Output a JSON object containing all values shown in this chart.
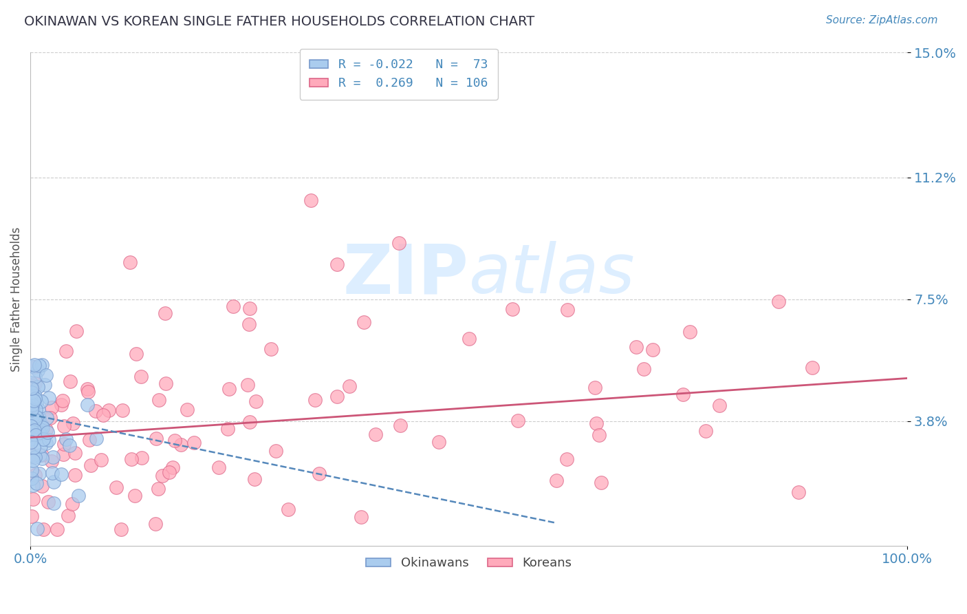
{
  "title": "OKINAWAN VS KOREAN SINGLE FATHER HOUSEHOLDS CORRELATION CHART",
  "source_text": "Source: ZipAtlas.com",
  "ylabel": "Single Father Households",
  "xmin": 0.0,
  "xmax": 1.0,
  "ymin": 0.0,
  "ymax": 0.15,
  "yticks": [
    0.038,
    0.075,
    0.112,
    0.15
  ],
  "ytick_labels": [
    "3.8%",
    "7.5%",
    "11.2%",
    "15.0%"
  ],
  "xticks": [
    0.0,
    1.0
  ],
  "xtick_labels": [
    "0.0%",
    "100.0%"
  ],
  "legend_blue_r": "-0.022",
  "legend_blue_n": "73",
  "legend_pink_r": "0.269",
  "legend_pink_n": "106",
  "blue_scatter_color": "#aaccee",
  "blue_edge_color": "#7799cc",
  "pink_scatter_color": "#ffaabb",
  "pink_edge_color": "#dd6688",
  "blue_line_color": "#5588bb",
  "pink_line_color": "#cc5577",
  "axis_tick_color": "#4488bb",
  "title_color": "#333344",
  "source_color": "#4488bb",
  "watermark_color": "#ddeeff",
  "background_color": "#ffffff",
  "grid_color": "#cccccc",
  "ylabel_color": "#555555",
  "legend_text_color": "#4488bb"
}
